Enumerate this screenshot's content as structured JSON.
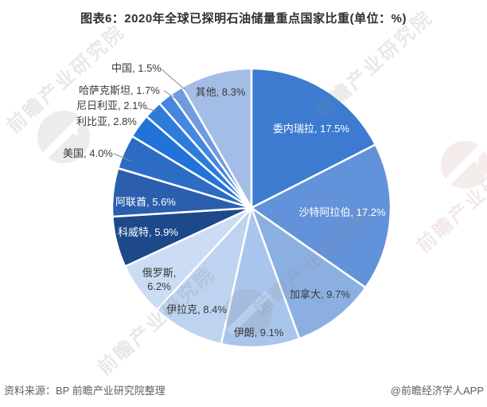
{
  "header": {
    "title": "图表6：2020年全球已探明石油储量重点国家比重(单位：%)"
  },
  "chart_data": {
    "type": "pie",
    "title": "2020年全球已探明石油储量重点国家比重",
    "unit": "%",
    "categories": [
      "委内瑞拉",
      "沙特阿拉伯",
      "加拿大",
      "伊朗",
      "伊拉克",
      "俄罗斯",
      "科威特",
      "阿联酋",
      "美国",
      "利比亚",
      "尼日利亚",
      "哈萨克斯坦",
      "中国",
      "其他"
    ],
    "values": [
      17.5,
      17.2,
      9.7,
      9.1,
      8.4,
      6.2,
      5.9,
      5.6,
      4.0,
      2.8,
      2.1,
      1.7,
      1.5,
      8.3
    ],
    "colors": [
      "#3c7bd0",
      "#6292da",
      "#8cafe2",
      "#a9c5ec",
      "#bdd3ef",
      "#cbdcf4",
      "#1d4889",
      "#2b5fae",
      "#2d6cc4",
      "#2173d8",
      "#2e7cda",
      "#4487e0",
      "#6f9bde",
      "#a4bde6"
    ],
    "label_format": "{name}, {value}%",
    "start_angle": "12-oclock",
    "direction": "clockwise",
    "legend_position": "none",
    "label_color_dark": "#3a3a3a",
    "label_color_light": "#ffffff"
  },
  "watermark": {
    "text": "前瞻产业研究院"
  },
  "footer": {
    "source": "资料来源：BP 前瞻产业研究院整理",
    "credit": "@前瞻经济学人APP"
  }
}
